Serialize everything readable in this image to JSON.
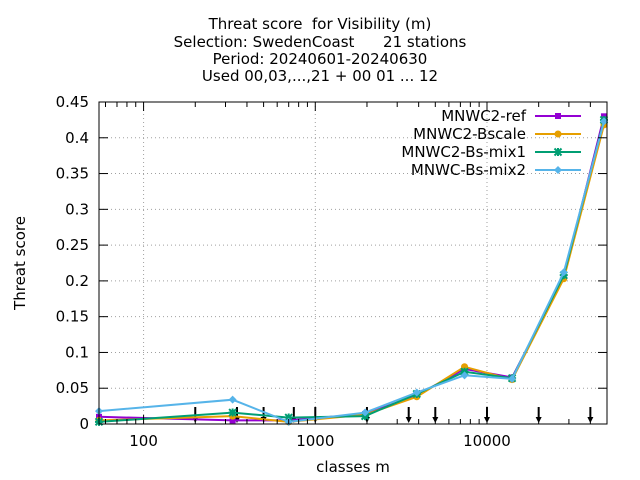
{
  "chart_data": {
    "type": "line",
    "title_lines": [
      "Threat score  for Visibility (m)",
      "Selection: SwedenCoast      21 stations",
      "Period: 20240601-20240630",
      "Used 00,03,...,21 + 00 01 ... 12"
    ],
    "xlabel": "classes m",
    "ylabel": "Threat score",
    "x_scale": "log",
    "xlim": [
      55,
      50000
    ],
    "ylim": [
      0,
      0.45
    ],
    "x_tick_labels": [
      "100",
      "1000",
      "10000"
    ],
    "x_tick_values": [
      100,
      1000,
      10000
    ],
    "y_tick_labels": [
      "0",
      "0.05",
      "0.1",
      "0.15",
      "0.2",
      "0.25",
      "0.3",
      "0.35",
      "0.4",
      "0.45"
    ],
    "y_tick_values": [
      0,
      0.05,
      0.1,
      0.15,
      0.2,
      0.25,
      0.3,
      0.35,
      0.4,
      0.45
    ],
    "grid": true,
    "legend_position": "top-right",
    "class_markers_x": [
      200,
      350,
      500,
      750,
      1000,
      2000,
      3500,
      5000,
      10000,
      20000,
      40000
    ],
    "series": [
      {
        "name": "MNWC2-ref",
        "color": "#9400d3",
        "marker": "square",
        "x": [
          55,
          330,
          700,
          1950,
          3900,
          7400,
          14000,
          28000,
          48000
        ],
        "y": [
          0.01,
          0.005,
          0.005,
          0.014,
          0.04,
          0.077,
          0.065,
          0.205,
          0.43
        ]
      },
      {
        "name": "MNWC2-Bscale",
        "color": "#e69f00",
        "marker": "circle",
        "x": [
          55,
          330,
          700,
          1950,
          3900,
          7400,
          14000,
          28000,
          48000
        ],
        "y": [
          0.005,
          0.011,
          0.003,
          0.013,
          0.038,
          0.08,
          0.062,
          0.203,
          0.418
        ]
      },
      {
        "name": "MNWC2-Bs-mix1",
        "color": "#009e73",
        "marker": "cross",
        "x": [
          55,
          330,
          700,
          1950,
          3900,
          7400,
          14000,
          28000,
          48000
        ],
        "y": [
          0.003,
          0.016,
          0.009,
          0.011,
          0.042,
          0.073,
          0.064,
          0.208,
          0.425
        ]
      },
      {
        "name": "MNWC-Bs-mix2",
        "color": "#56b4e9",
        "marker": "diamond",
        "x": [
          55,
          330,
          700,
          1950,
          3900,
          7400,
          14000,
          28000,
          48000
        ],
        "y": [
          0.018,
          0.034,
          0.003,
          0.016,
          0.044,
          0.068,
          0.063,
          0.212,
          0.423
        ]
      }
    ]
  }
}
